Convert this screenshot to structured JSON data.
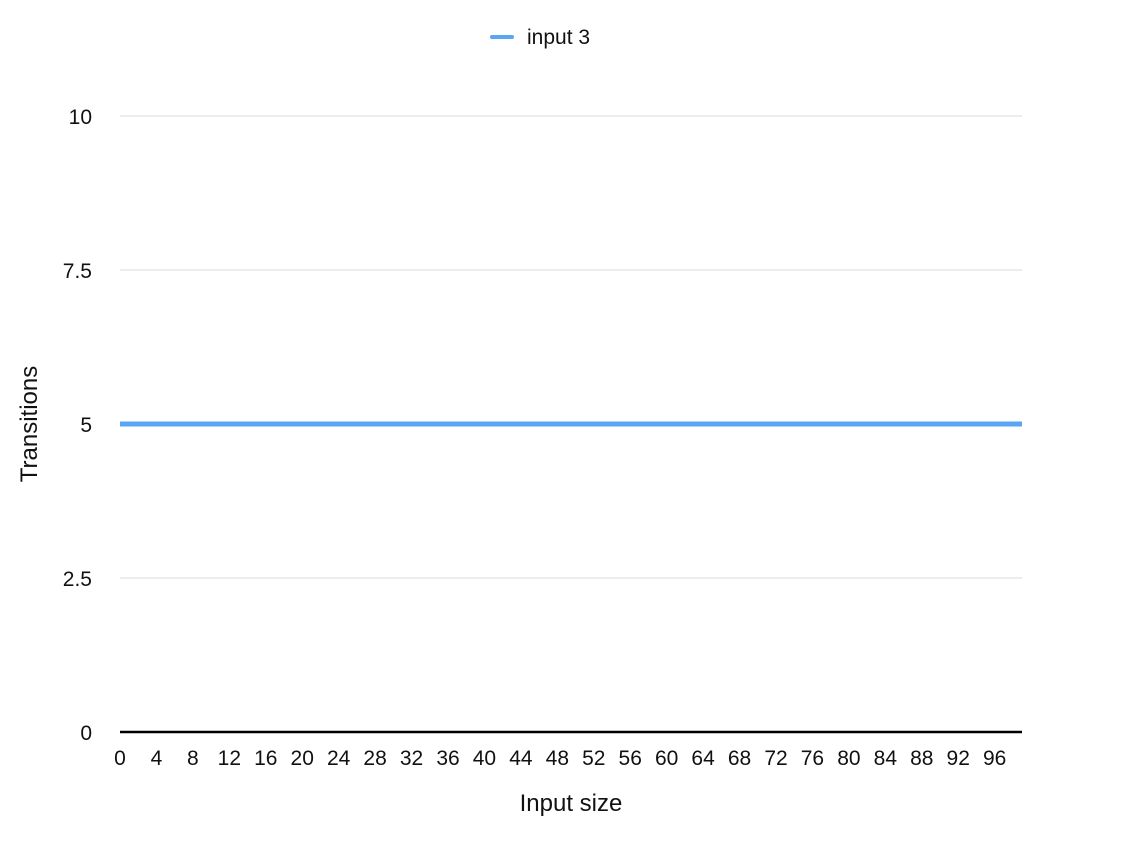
{
  "chart_data": {
    "type": "line",
    "title": "",
    "xlabel": "Input size",
    "ylabel": "Transitions",
    "x_ticks": [
      "0",
      "4",
      "8",
      "12",
      "16",
      "20",
      "24",
      "28",
      "32",
      "36",
      "40",
      "44",
      "48",
      "52",
      "56",
      "60",
      "64",
      "68",
      "72",
      "76",
      "80",
      "84",
      "88",
      "92",
      "96"
    ],
    "y_ticks": [
      "0",
      "2.5",
      "5",
      "7.5",
      "10"
    ],
    "xlim": [
      0,
      99
    ],
    "ylim": [
      0,
      10
    ],
    "grid": true,
    "legend_position": "top-center",
    "series": [
      {
        "name": "input 3",
        "color": "#5aa6f5",
        "x": [
          0,
          99
        ],
        "y": [
          5,
          5
        ]
      }
    ]
  }
}
